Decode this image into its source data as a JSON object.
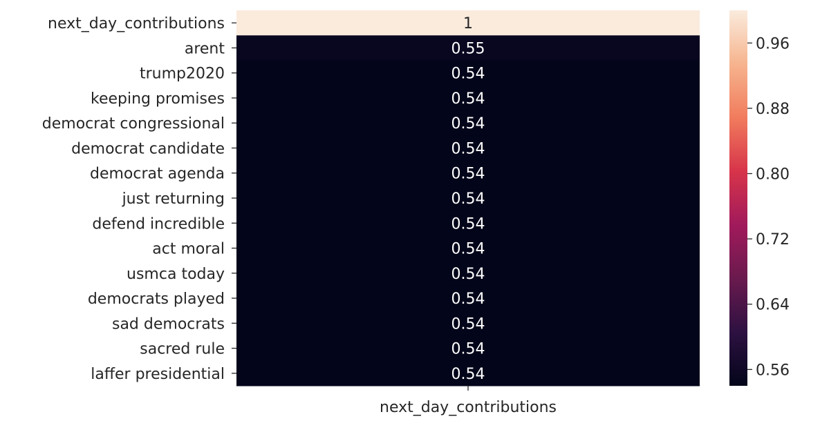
{
  "chart_data": {
    "type": "heatmap",
    "title": "",
    "xlabel": "",
    "ylabel": "",
    "columns": [
      "next_day_contributions"
    ],
    "rows": [
      "next_day_contributions",
      "arent",
      "trump2020",
      "keeping promises",
      "democrat congressional",
      "democrat candidate",
      "democrat agenda",
      "just returning",
      "defend incredible",
      "act moral",
      "usmca today",
      "democrats played",
      "sad democrats",
      "sacred rule",
      "laffer presidential"
    ],
    "values": [
      1,
      0.55,
      0.54,
      0.54,
      0.54,
      0.54,
      0.54,
      0.54,
      0.54,
      0.54,
      0.54,
      0.54,
      0.54,
      0.54,
      0.54
    ],
    "value_labels": [
      "1",
      "0.55",
      "0.54",
      "0.54",
      "0.54",
      "0.54",
      "0.54",
      "0.54",
      "0.54",
      "0.54",
      "0.54",
      "0.54",
      "0.54",
      "0.54",
      "0.54"
    ],
    "colorbar": {
      "range": [
        0.54,
        1.0
      ],
      "ticks": [
        0.96,
        0.88,
        0.8,
        0.72,
        0.64,
        0.56
      ],
      "tick_labels": [
        "0.96",
        "0.88",
        "0.80",
        "0.72",
        "0.64",
        "0.56"
      ],
      "colormap": "rocket",
      "color_stops": [
        "#03051a",
        "#2d1141",
        "#6a1a4e",
        "#a11a5b",
        "#d7344a",
        "#f17c5d",
        "#f6b48e",
        "#faebdd"
      ]
    },
    "annotation_colors": {
      "dark_cell": "#ffffff",
      "light_cell": "#262626"
    }
  }
}
